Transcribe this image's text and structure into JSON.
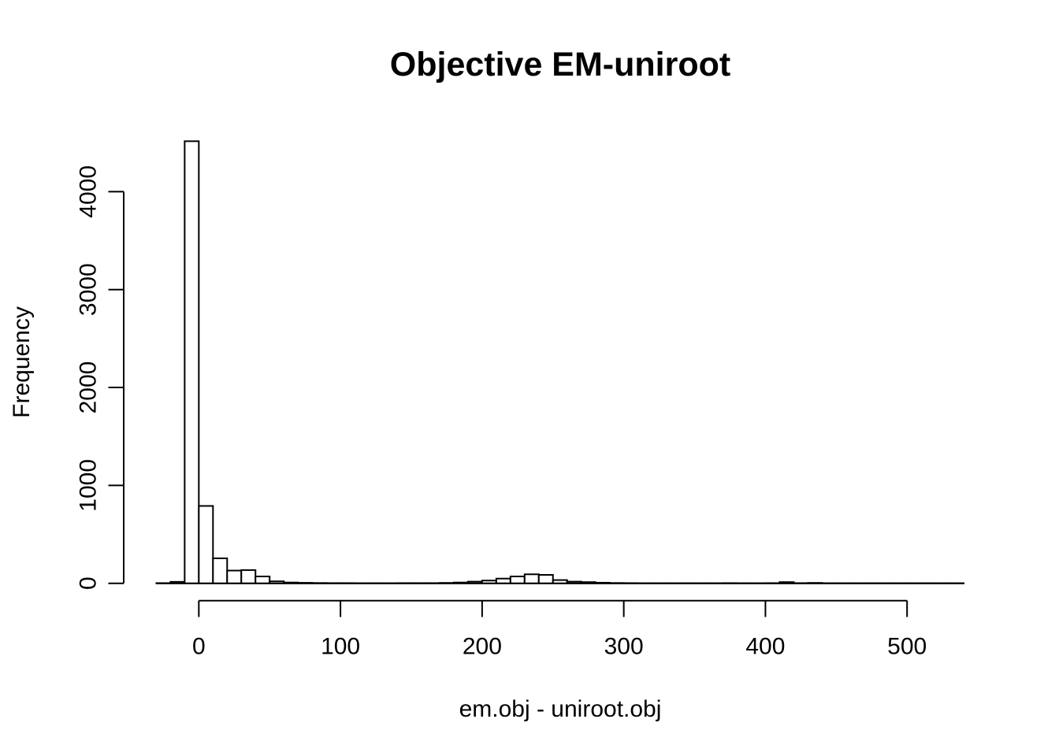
{
  "chart_data": {
    "type": "bar",
    "subtype": "histogram",
    "title": "Objective EM-uniroot",
    "xlabel": "em.obj - uniroot.obj",
    "ylabel": "Frequency",
    "xlim": [
      -30,
      540
    ],
    "ylim": [
      0,
      4000
    ],
    "x_ticks": [
      0,
      100,
      200,
      300,
      400,
      500
    ],
    "y_ticks": [
      0,
      1000,
      2000,
      3000,
      4000
    ],
    "grid": false,
    "legend": null,
    "bin_width": 10,
    "breaks": [
      -30,
      -20,
      -10,
      0,
      10,
      20,
      30,
      40,
      50,
      60,
      70,
      80,
      90,
      100,
      110,
      120,
      130,
      140,
      150,
      160,
      170,
      180,
      190,
      200,
      210,
      220,
      230,
      240,
      250,
      260,
      270,
      280,
      290,
      300,
      310,
      320,
      330,
      340,
      350,
      360,
      370,
      380,
      390,
      400,
      410,
      420,
      430,
      440,
      450,
      460,
      470,
      480,
      490,
      500,
      510,
      520,
      530,
      540
    ],
    "counts": [
      2,
      15,
      4515,
      790,
      255,
      130,
      135,
      70,
      20,
      8,
      5,
      3,
      2,
      2,
      1,
      1,
      1,
      2,
      2,
      2,
      4,
      8,
      17,
      28,
      48,
      70,
      92,
      86,
      33,
      17,
      12,
      6,
      3,
      2,
      1,
      1,
      1,
      1,
      1,
      1,
      2,
      1,
      1,
      2,
      12,
      2,
      4,
      1,
      1,
      1,
      1,
      1,
      1,
      1,
      1,
      1,
      1
    ],
    "bar_fill": "#ffffff",
    "bar_stroke": "#000000",
    "axis_color": "#000000",
    "text_color": "#000000",
    "background": "#ffffff"
  }
}
